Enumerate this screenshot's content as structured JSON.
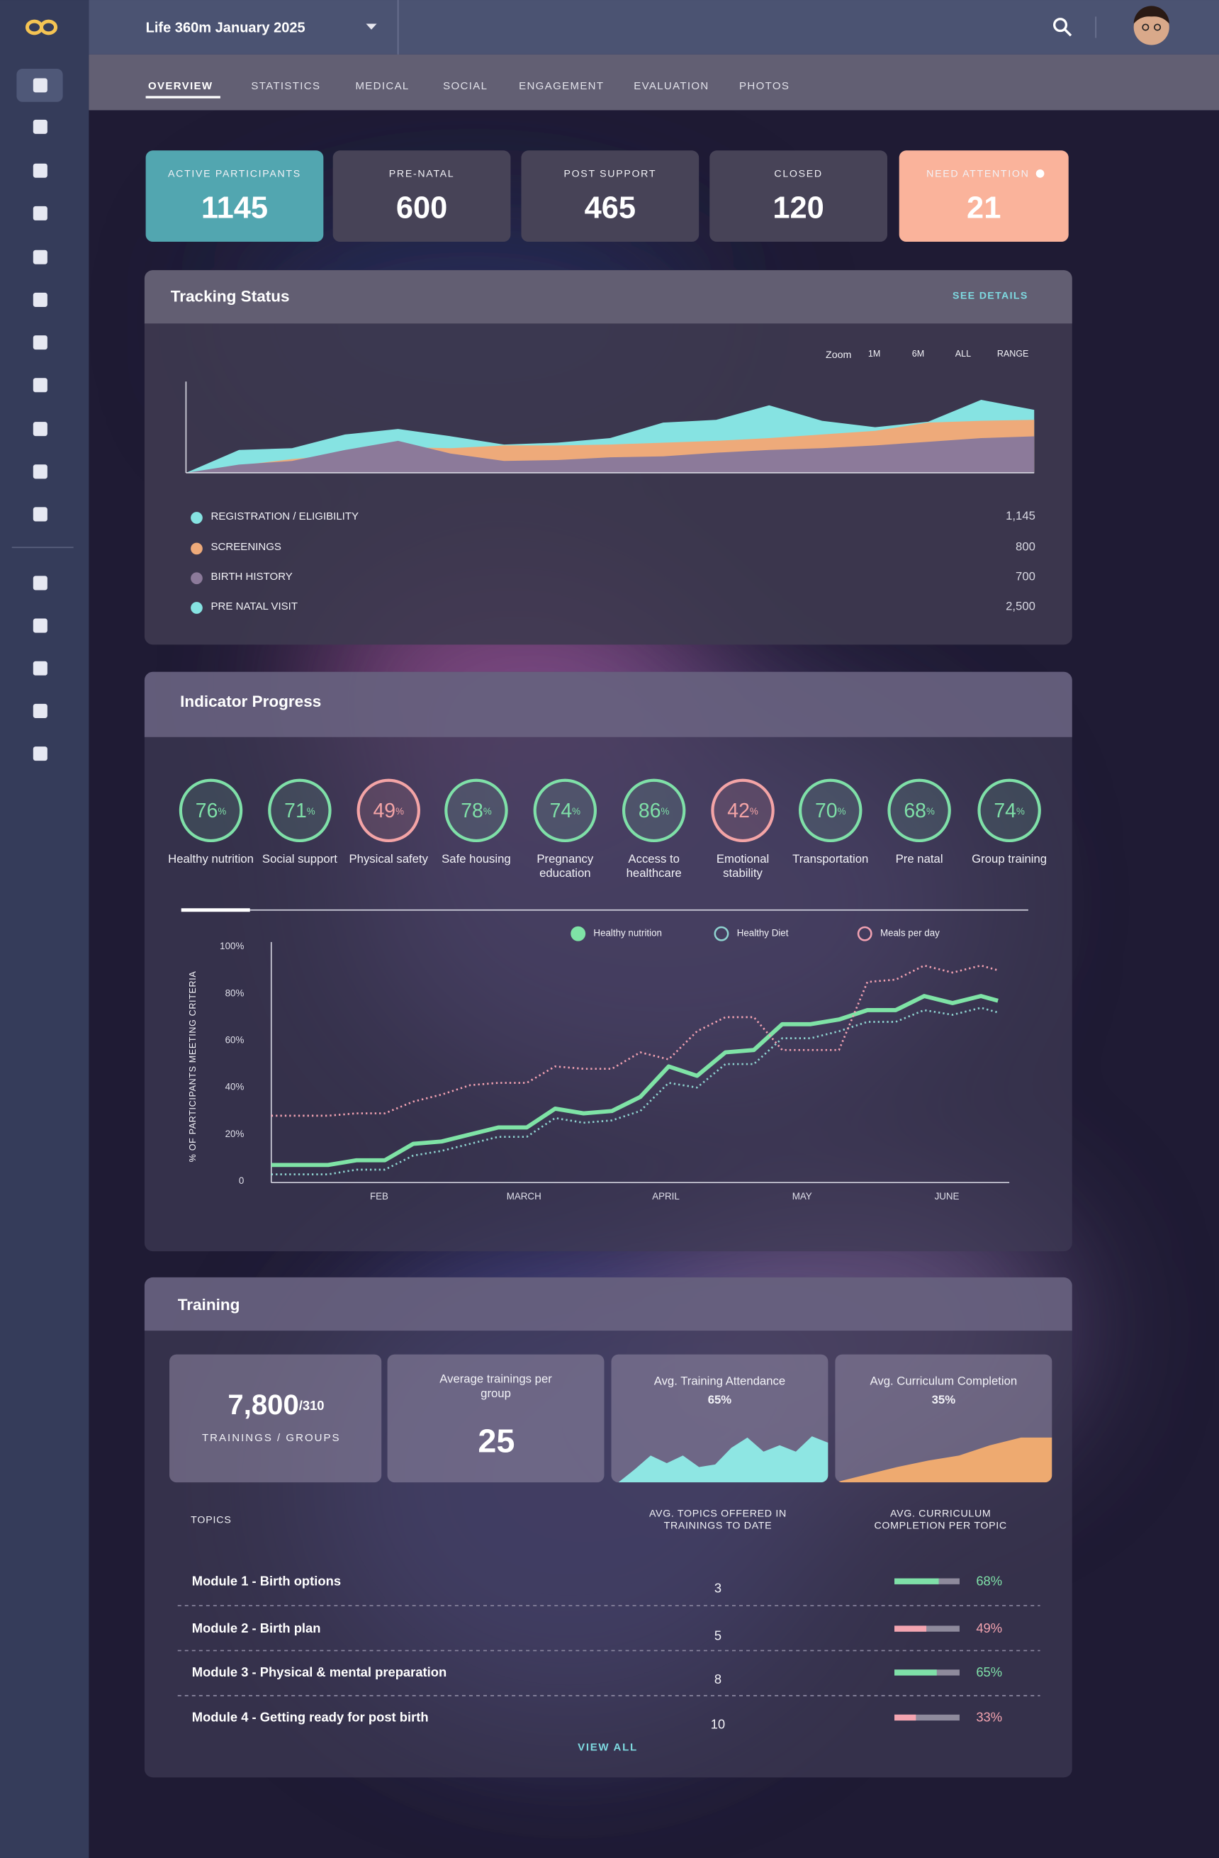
{
  "header": {
    "title": "Life 360m January 2025"
  },
  "tabs": [
    "OVERVIEW",
    "STATISTICS",
    "MEDICAL",
    "SOCIAL",
    "ENGAGEMENT",
    "EVALUATION",
    "PHOTOS"
  ],
  "kpis": [
    {
      "label": "ACTIVE PARTICIPANTS",
      "value": 1145,
      "color": "#52a6b0"
    },
    {
      "label": "PRE-NATAL",
      "value": 600,
      "color": "#474357"
    },
    {
      "label": "POST SUPPORT",
      "value": 465,
      "color": "#474357"
    },
    {
      "label": "CLOSED",
      "value": 120,
      "color": "#474357"
    },
    {
      "label": "NEED ATTENTION",
      "value": 21,
      "color": "#fab39b"
    }
  ],
  "tracking": {
    "link": "SEE DETAILS",
    "zoom_label": "Zoom",
    "zoom_options": [
      "1M",
      "6M",
      "ALL",
      "RANGE"
    ]
  },
  "indicators": {
    "title": "Indicator Progress",
    "unit": "%",
    "items": [
      {
        "label": "Healthy nutrition",
        "value": 76,
        "color": "#7fe0a8"
      },
      {
        "label": "Social support",
        "value": 71,
        "color": "#7fe0a8"
      },
      {
        "label": "Physical safety",
        "value": 49,
        "color": "#f4a4a6"
      },
      {
        "label": "Safe housing",
        "value": 78,
        "color": "#7fe0a8"
      },
      {
        "label": "Pregnancy education",
        "value": 74,
        "color": "#7fe0a8"
      },
      {
        "label": "Access to healthcare",
        "value": 86,
        "color": "#7fe0a8"
      },
      {
        "label": "Emotional stability",
        "value": 42,
        "color": "#f4a4a6"
      },
      {
        "label": "Transportation",
        "value": 70,
        "color": "#7fe0a8"
      },
      {
        "label": "Pre natal",
        "value": 68,
        "color": "#7fe0a8"
      },
      {
        "label": "Group training",
        "value": 74,
        "color": "#7fe0a8"
      }
    ]
  },
  "training": {
    "title": "Training",
    "total": "7,800",
    "groups": "/310",
    "caption": "TRAININGS / GROUPS",
    "avg_label": "Average trainings per group",
    "avg_value": 25,
    "columns": [
      "TOPICS",
      "AVG. TOPICS OFFERED IN TRAININGS TO DATE",
      "AVG. CURRICULUM COMPLETION PER TOPIC"
    ],
    "rows": [
      {
        "topic": "Module 1 - Birth options",
        "offered": 3,
        "completion": {
          "value": 68,
          "label": "68%"
        },
        "color": "#7fe0a8"
      },
      {
        "topic": "Module 2 - Birth plan",
        "offered": 5,
        "completion": {
          "value": 49,
          "label": "49%"
        },
        "color": "#f4a4b0"
      },
      {
        "topic": "Module 3 - Physical & mental preparation",
        "offered": 8,
        "completion": {
          "value": 65,
          "label": "65%"
        },
        "color": "#7fe0a8"
      },
      {
        "topic": "Module 4 - Getting ready for post birth",
        "offered": 10,
        "completion": {
          "value": 33,
          "label": "33%"
        },
        "color": "#f4a4b0"
      }
    ],
    "link": "VIEW ALL"
  },
  "chart_data": [
    {
      "type": "area",
      "title": "Tracking Status",
      "x": [
        0,
        1,
        2,
        3,
        4,
        5,
        6,
        7,
        8,
        9,
        10,
        11,
        12,
        13,
        14,
        15,
        16
      ],
      "xlim": [
        0,
        16
      ],
      "ylim": [
        0,
        100
      ],
      "series": [
        {
          "name": "REGISTRATION / ELIGIBILITY",
          "color": "#86e3e2",
          "total": "1,145",
          "values": [
            0,
            25,
            27,
            42,
            48,
            40,
            31,
            33,
            38,
            55,
            58,
            74,
            57,
            50,
            56,
            80,
            69
          ]
        },
        {
          "name": "SCREENINGS",
          "color": "#eeaa7a",
          "total": "800",
          "values": [
            0,
            8,
            15,
            20,
            28,
            27,
            30,
            30,
            31,
            33,
            35,
            38,
            42,
            46,
            55,
            57,
            58
          ]
        },
        {
          "name": "BIRTH HISTORY",
          "color": "#8c7a9a",
          "total": "700",
          "values": [
            0,
            9,
            13,
            25,
            35,
            21,
            13,
            14,
            17,
            18,
            22,
            25,
            27,
            30,
            34,
            38,
            40
          ]
        },
        {
          "name": "PRE NATAL VISIT",
          "color": "#86e3e2",
          "total": "2,500"
        }
      ]
    },
    {
      "type": "line",
      "y_label": "% OF PARTICIPANTS MEETING CRITERIA",
      "x": [
        0,
        1,
        2,
        3,
        4,
        5,
        6,
        7,
        8,
        9,
        10,
        11,
        12,
        13,
        14,
        15,
        16,
        17,
        18,
        19,
        20,
        21,
        22,
        23,
        24,
        25,
        25.6
      ],
      "xlim": [
        0,
        26
      ],
      "xticks": [
        {
          "value": 3.8,
          "label": "FEB"
        },
        {
          "value": 8.9,
          "label": "MARCH"
        },
        {
          "value": 13.9,
          "label": "APRIL"
        },
        {
          "value": 18.7,
          "label": "MAY"
        },
        {
          "value": 23.8,
          "label": "JUNE"
        }
      ],
      "ylim": [
        0,
        100
      ],
      "yticks": [
        0,
        {
          "value": 20,
          "label": "20%"
        },
        {
          "value": 40,
          "label": "40%"
        },
        {
          "value": 60,
          "label": "60%"
        },
        {
          "value": 80,
          "label": "80%"
        },
        {
          "value": 100,
          "label": "100%"
        }
      ],
      "series": [
        {
          "name": "Healthy nutrition",
          "color": "#7fe3a6",
          "style": "solid",
          "values": [
            7,
            7,
            7,
            9,
            9,
            16,
            17,
            20,
            23,
            23,
            31,
            29,
            30,
            36,
            49,
            45,
            55,
            56,
            67,
            67,
            69,
            73,
            73,
            79,
            76,
            79,
            77
          ]
        },
        {
          "name": "Healthy Diet",
          "color": "#8fd3d0",
          "style": "dotted",
          "values": [
            3,
            3,
            3,
            5,
            5,
            11,
            13,
            16,
            19,
            19,
            27,
            25,
            26,
            30,
            42,
            40,
            50,
            50,
            61,
            61,
            64,
            68,
            68,
            73,
            71,
            74,
            72
          ]
        },
        {
          "name": "Meals per day",
          "color": "#f2a2b2",
          "style": "dotted",
          "values": [
            28,
            28,
            28,
            29,
            29,
            34,
            37,
            41,
            42,
            42,
            49,
            48,
            48,
            55,
            52,
            64,
            70,
            70,
            56,
            56,
            56,
            85,
            86,
            92,
            89,
            92,
            90
          ]
        }
      ]
    },
    {
      "type": "area",
      "title": "Avg. Training Attendance",
      "summary": "65%",
      "color": "#8ee6e3",
      "ylim": [
        0,
        100
      ],
      "values": [
        0,
        10,
        21,
        15,
        21,
        12,
        14,
        27,
        35,
        24,
        29,
        24,
        36,
        31
      ]
    },
    {
      "type": "area",
      "title": "Avg. Curriculum Completion",
      "summary": "35%",
      "color": "#eeaa70",
      "ylim": [
        0,
        100
      ],
      "values": [
        0,
        6,
        12,
        17,
        21,
        29,
        35,
        35
      ]
    }
  ]
}
